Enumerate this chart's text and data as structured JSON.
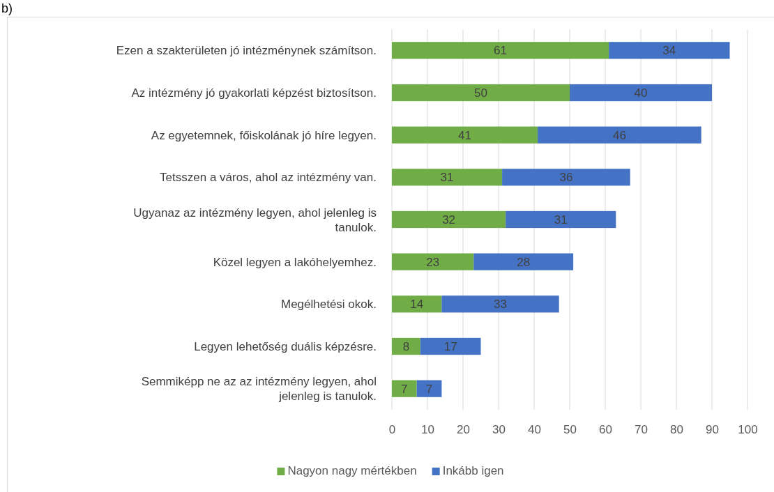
{
  "chart_data": {
    "type": "bar",
    "orientation": "horizontal",
    "stacked": true,
    "title": "b)",
    "categories": [
      "Ezen a szakterületen jó intézménynek számítson.",
      "Az intézmény jó gyakorlati képzést biztosítson.",
      "Az egyetemnek, főiskolának jó híre legyen.",
      "Tetsszen a város, ahol az intézmény van.",
      "Ugyanaz az intézmény legyen, ahol jelenleg is tanulok.",
      "Közel legyen a lakóhelyemhez.",
      "Megélhetési okok.",
      "Legyen lehetőség duális képzésre.",
      "Semmiképp ne az az intézmény legyen, ahol jelenleg is tanulok."
    ],
    "series": [
      {
        "name": "Nagyon nagy mértékben",
        "color": "#70ad47",
        "values": [
          61,
          50,
          41,
          31,
          32,
          23,
          14,
          8,
          7
        ]
      },
      {
        "name": "Inkább igen",
        "color": "#4472c4",
        "values": [
          34,
          40,
          46,
          36,
          31,
          28,
          33,
          17,
          7
        ]
      }
    ],
    "xlim": [
      0,
      100
    ],
    "xticks": [
      0,
      10,
      20,
      30,
      40,
      50,
      60,
      70,
      80,
      90,
      100
    ],
    "grid": "x",
    "legend": "bottom",
    "data_labels": true
  }
}
